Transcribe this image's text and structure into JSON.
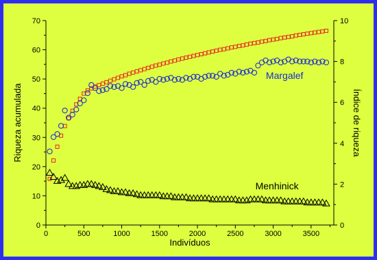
{
  "colors": {
    "page_border": "#2d2ef0",
    "panel": "#ddff40",
    "axis": "#000000",
    "red_series": "#e8231f",
    "blue_series": "#2233cc",
    "black_series": "#000000",
    "label_blue": "#1a2ad8"
  },
  "chart_data": {
    "type": "scatter",
    "title": "",
    "xlabel": "Indivíduos",
    "ylabel_left": "Riqueza acumulada",
    "ylabel_right": "Índice de riqueza",
    "xlim": [
      0,
      3800
    ],
    "ylim_left": [
      0,
      70
    ],
    "ylim_right": [
      0,
      10
    ],
    "x_ticks": [
      0,
      500,
      1000,
      1500,
      2000,
      2500,
      3000,
      3500
    ],
    "y_left_ticks": [
      0,
      10,
      20,
      30,
      40,
      50,
      60,
      70
    ],
    "y_right_ticks": [
      0,
      2,
      4,
      6,
      8,
      10
    ],
    "grid": false,
    "series": [
      {
        "marker": "square",
        "color": "#e8231f",
        "axis": "left",
        "x": [
          50,
          100,
          150,
          200,
          250,
          300,
          350,
          400,
          450,
          500,
          550,
          600,
          650,
          700,
          750,
          800,
          850,
          900,
          950,
          1000,
          1050,
          1100,
          1150,
          1200,
          1250,
          1300,
          1350,
          1400,
          1450,
          1500,
          1550,
          1600,
          1650,
          1700,
          1750,
          1800,
          1850,
          1900,
          1950,
          2000,
          2050,
          2100,
          2150,
          2200,
          2250,
          2300,
          2350,
          2400,
          2450,
          2500,
          2550,
          2600,
          2650,
          2700,
          2750,
          2800,
          2850,
          2900,
          2950,
          3000,
          3050,
          3100,
          3150,
          3200,
          3250,
          3300,
          3350,
          3400,
          3450,
          3500,
          3550,
          3600,
          3650,
          3700
        ],
        "y": [
          15.8,
          22.1,
          26.8,
          30.6,
          33.9,
          36.6,
          39.1,
          41.3,
          43.2,
          45.0,
          46.1,
          46.8,
          47.4,
          47.9,
          48.4,
          48.9,
          49.4,
          49.9,
          50.4,
          50.9,
          51.3,
          51.8,
          52.2,
          52.6,
          53.0,
          53.4,
          53.8,
          54.2,
          54.6,
          54.9,
          55.3,
          55.6,
          56.0,
          56.3,
          56.7,
          57.0,
          57.3,
          57.6,
          57.9,
          58.2,
          58.5,
          58.8,
          59.1,
          59.4,
          59.7,
          60.0,
          60.2,
          60.5,
          60.8,
          61.0,
          61.3,
          61.5,
          61.8,
          62.1,
          62.3,
          62.5,
          62.8,
          63.0,
          63.3,
          63.5,
          63.7,
          64.0,
          64.2,
          64.4,
          64.6,
          64.9,
          65.1,
          65.3,
          65.5,
          65.7,
          65.9,
          66.1,
          66.3,
          66.5
        ]
      },
      {
        "name": "Margalef",
        "marker": "circle",
        "color": "#2233cc",
        "axis": "right",
        "x": [
          50,
          100,
          150,
          200,
          250,
          300,
          350,
          400,
          450,
          500,
          550,
          600,
          650,
          700,
          750,
          800,
          850,
          900,
          950,
          1000,
          1050,
          1100,
          1150,
          1200,
          1250,
          1300,
          1350,
          1400,
          1450,
          1500,
          1550,
          1600,
          1650,
          1700,
          1750,
          1800,
          1850,
          1900,
          1950,
          2000,
          2050,
          2100,
          2150,
          2200,
          2250,
          2300,
          2350,
          2400,
          2450,
          2500,
          2550,
          2600,
          2650,
          2700,
          2750,
          2800,
          2850,
          2900,
          2950,
          3000,
          3050,
          3100,
          3150,
          3200,
          3250,
          3300,
          3350,
          3400,
          3450,
          3500,
          3550,
          3600,
          3650,
          3700
        ],
        "y": [
          3.6,
          4.3,
          4.45,
          4.85,
          5.6,
          5.25,
          5.4,
          5.65,
          5.95,
          6.1,
          6.45,
          6.85,
          6.7,
          6.55,
          6.6,
          6.65,
          6.8,
          6.75,
          6.8,
          6.7,
          6.9,
          6.85,
          6.75,
          6.95,
          7.0,
          6.85,
          7.05,
          7.1,
          7.0,
          7.15,
          7.1,
          7.15,
          7.2,
          7.1,
          7.15,
          7.1,
          7.2,
          7.15,
          7.25,
          7.25,
          7.15,
          7.25,
          7.3,
          7.3,
          7.25,
          7.4,
          7.3,
          7.35,
          7.45,
          7.4,
          7.5,
          7.45,
          7.5,
          7.55,
          7.45,
          7.8,
          7.95,
          8.05,
          7.95,
          8.0,
          8.05,
          7.95,
          8.0,
          8.1,
          8.0,
          8.05,
          8.0,
          8.0,
          8.0,
          7.95,
          8.0,
          7.95,
          8.0,
          7.95
        ]
      },
      {
        "name": "Menhinick",
        "marker": "triangle",
        "color": "#000000",
        "axis": "right",
        "x": [
          50,
          100,
          150,
          200,
          250,
          300,
          350,
          400,
          450,
          500,
          550,
          600,
          650,
          700,
          750,
          800,
          850,
          900,
          950,
          1000,
          1050,
          1100,
          1150,
          1200,
          1250,
          1300,
          1350,
          1400,
          1450,
          1500,
          1550,
          1600,
          1650,
          1700,
          1750,
          1800,
          1850,
          1900,
          1950,
          2000,
          2050,
          2100,
          2150,
          2200,
          2250,
          2300,
          2350,
          2400,
          2450,
          2500,
          2550,
          2600,
          2650,
          2700,
          2750,
          2800,
          2850,
          2900,
          2950,
          3000,
          3050,
          3100,
          3150,
          3200,
          3250,
          3300,
          3350,
          3400,
          3450,
          3500,
          3550,
          3600,
          3650,
          3700
        ],
        "y": [
          2.55,
          2.35,
          2.15,
          2.2,
          2.3,
          2.0,
          1.9,
          1.9,
          1.95,
          1.95,
          2.0,
          2.0,
          1.95,
          1.9,
          1.85,
          1.75,
          1.7,
          1.65,
          1.65,
          1.6,
          1.6,
          1.55,
          1.55,
          1.5,
          1.45,
          1.45,
          1.45,
          1.45,
          1.45,
          1.45,
          1.4,
          1.4,
          1.4,
          1.35,
          1.35,
          1.35,
          1.35,
          1.3,
          1.3,
          1.3,
          1.3,
          1.3,
          1.3,
          1.25,
          1.25,
          1.25,
          1.25,
          1.25,
          1.25,
          1.25,
          1.2,
          1.2,
          1.2,
          1.25,
          1.25,
          1.25,
          1.25,
          1.2,
          1.2,
          1.2,
          1.2,
          1.2,
          1.15,
          1.15,
          1.15,
          1.15,
          1.15,
          1.15,
          1.1,
          1.1,
          1.1,
          1.1,
          1.1,
          1.05
        ]
      }
    ],
    "annotations": [
      {
        "text": "Margalef",
        "color": "#1a2ad8"
      },
      {
        "text": "Menhinick",
        "color": "#000000"
      }
    ]
  }
}
